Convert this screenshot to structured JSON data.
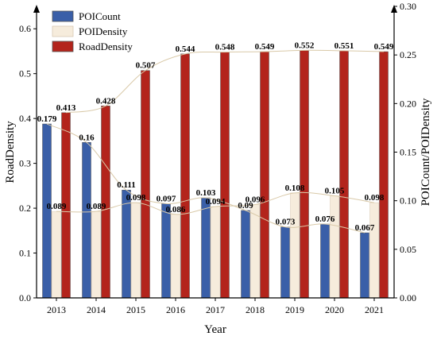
{
  "chart_data": {
    "type": "bar",
    "categories": [
      "2013",
      "2014",
      "2015",
      "2016",
      "2017",
      "2018",
      "2019",
      "2020",
      "2021"
    ],
    "series": [
      {
        "name": "POICount",
        "axis": "right",
        "color": "#3a5fa8",
        "values": [
          0.179,
          0.16,
          0.111,
          0.097,
          0.103,
          0.09,
          0.073,
          0.076,
          0.067
        ],
        "labels": [
          "0.179",
          "0.16",
          "0.111",
          "0.097",
          "0.103",
          "0.09",
          "0.073",
          "0.076",
          "0.067"
        ]
      },
      {
        "name": "POIDensity",
        "axis": "right",
        "color": "#f6ecdc",
        "values": [
          0.089,
          0.089,
          0.098,
          0.086,
          0.094,
          0.096,
          0.108,
          0.105,
          0.098
        ],
        "labels": [
          "0.089",
          "0.089",
          "0.098",
          "0.086",
          "0.094",
          "0.096",
          "0.108",
          "0.105",
          "0.098"
        ]
      },
      {
        "name": "RoadDensity",
        "axis": "left",
        "color": "#b3241c",
        "values": [
          0.413,
          0.428,
          0.507,
          0.544,
          0.548,
          0.549,
          0.552,
          0.551,
          0.549
        ],
        "labels": [
          "0.413",
          "0.428",
          "0.507",
          "0.544",
          "0.548",
          "0.549",
          "0.552",
          "0.551",
          "0.549"
        ]
      }
    ],
    "xlabel": "Year",
    "ylabel": "RoadDensity",
    "ylabel_right": "POICount/POIDensity",
    "ylim": [
      0,
      0.65
    ],
    "ylim_right": [
      0,
      0.3
    ],
    "yticks": [
      "0.0",
      "0.1",
      "0.2",
      "0.3",
      "0.4",
      "0.5",
      "0.6"
    ],
    "yticks_right": [
      "0.00",
      "0.05",
      "0.10",
      "0.15",
      "0.20",
      "0.25",
      "0.30"
    ],
    "legend_position": "top-left",
    "smooth_trend_lines": true,
    "grid": false
  }
}
